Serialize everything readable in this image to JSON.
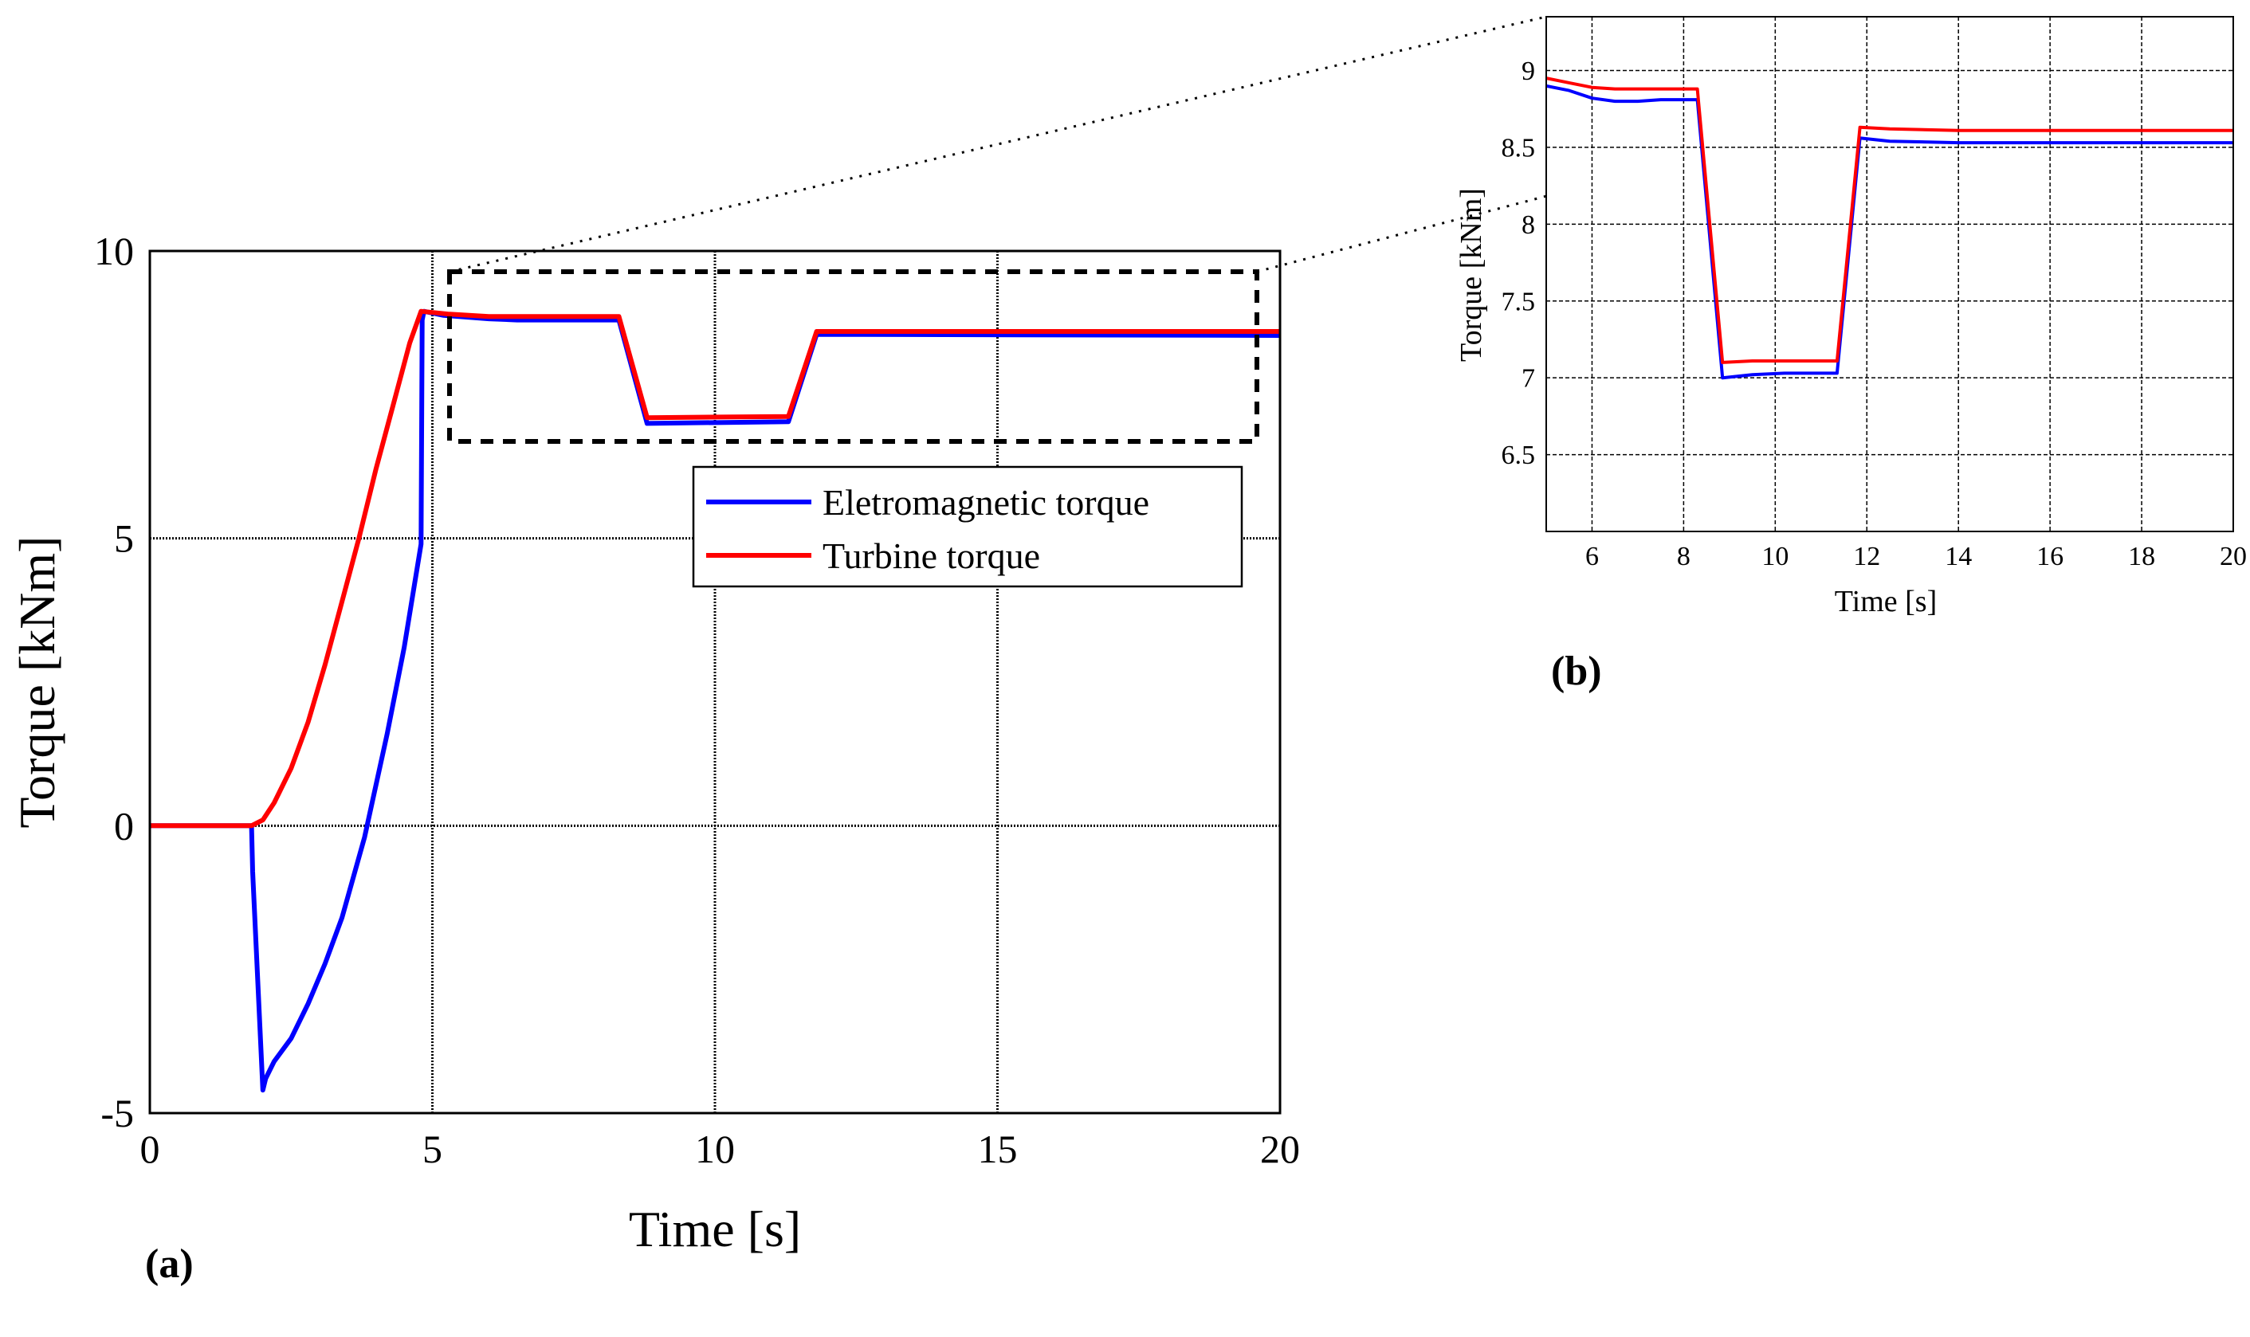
{
  "chart_data": [
    {
      "panel_label": "(a)",
      "type": "line",
      "xlabel": "Time [s]",
      "ylabel": "Torque [kNm]",
      "xlim": [
        0,
        20
      ],
      "ylim": [
        -5,
        10
      ],
      "xticks": [
        "0",
        "5",
        "10",
        "15",
        "20"
      ],
      "yticks": [
        "-5",
        "0",
        "5",
        "10"
      ],
      "grid": true,
      "legend_position": "center-right",
      "series": [
        {
          "name": "Eletromagnetic torque",
          "color": "#0000ff",
          "x": [
            0,
            1.8,
            1.82,
            2.0,
            2.05,
            2.2,
            2.5,
            2.8,
            3.1,
            3.4,
            3.8,
            4.2,
            4.5,
            4.8,
            4.82,
            4.85,
            5.2,
            6.0,
            6.5,
            8.3,
            8.8,
            11.3,
            11.8,
            20
          ],
          "y": [
            0,
            0,
            -0.8,
            -4.6,
            -4.4,
            -4.1,
            -3.7,
            -3.1,
            -2.4,
            -1.6,
            -0.2,
            1.6,
            3.1,
            4.9,
            8.8,
            8.95,
            8.88,
            8.82,
            8.8,
            8.8,
            7.0,
            7.03,
            8.55,
            8.53
          ]
        },
        {
          "name": "Turbine torque",
          "color": "#ff0000",
          "x": [
            0,
            1.8,
            2.0,
            2.2,
            2.5,
            2.8,
            3.1,
            3.4,
            3.7,
            4.0,
            4.3,
            4.6,
            4.8,
            5.3,
            6.0,
            6.5,
            8.3,
            8.8,
            11.3,
            11.8,
            20
          ],
          "y": [
            0,
            0,
            0.1,
            0.4,
            1.0,
            1.8,
            2.8,
            3.9,
            5.0,
            6.2,
            7.3,
            8.4,
            8.95,
            8.9,
            8.86,
            8.86,
            8.86,
            7.1,
            7.12,
            8.6,
            8.6
          ]
        }
      ]
    },
    {
      "panel_label": "(b)",
      "type": "line",
      "xlabel": "Time [s]",
      "ylabel": "Torque [kNm]",
      "xlim": [
        5,
        20
      ],
      "ylim": [
        6,
        9.35
      ],
      "xticks": [
        "6",
        "8",
        "10",
        "12",
        "14",
        "16",
        "18",
        "20"
      ],
      "yticks": [
        "6.5",
        "7",
        "7.5",
        "8",
        "8.5",
        "9"
      ],
      "grid": true,
      "series": [
        {
          "name": "Eletromagnetic torque",
          "color": "#0000ff",
          "x": [
            5,
            5.5,
            6.0,
            6.5,
            7.0,
            7.5,
            8.0,
            8.3,
            8.85,
            9.5,
            10.2,
            11.0,
            11.35,
            11.85,
            12.5,
            14,
            20
          ],
          "y": [
            8.9,
            8.87,
            8.82,
            8.8,
            8.8,
            8.81,
            8.81,
            8.81,
            7.0,
            7.02,
            7.03,
            7.03,
            7.03,
            8.56,
            8.54,
            8.53,
            8.53
          ]
        },
        {
          "name": "Turbine torque",
          "color": "#ff0000",
          "x": [
            5,
            5.5,
            6.0,
            6.5,
            7.0,
            8.0,
            8.3,
            8.85,
            9.5,
            10.2,
            11.0,
            11.35,
            11.85,
            12.5,
            14,
            20
          ],
          "y": [
            8.95,
            8.92,
            8.89,
            8.88,
            8.88,
            8.88,
            8.88,
            7.1,
            7.11,
            7.11,
            7.11,
            7.11,
            8.63,
            8.62,
            8.61,
            8.61
          ]
        }
      ]
    }
  ]
}
